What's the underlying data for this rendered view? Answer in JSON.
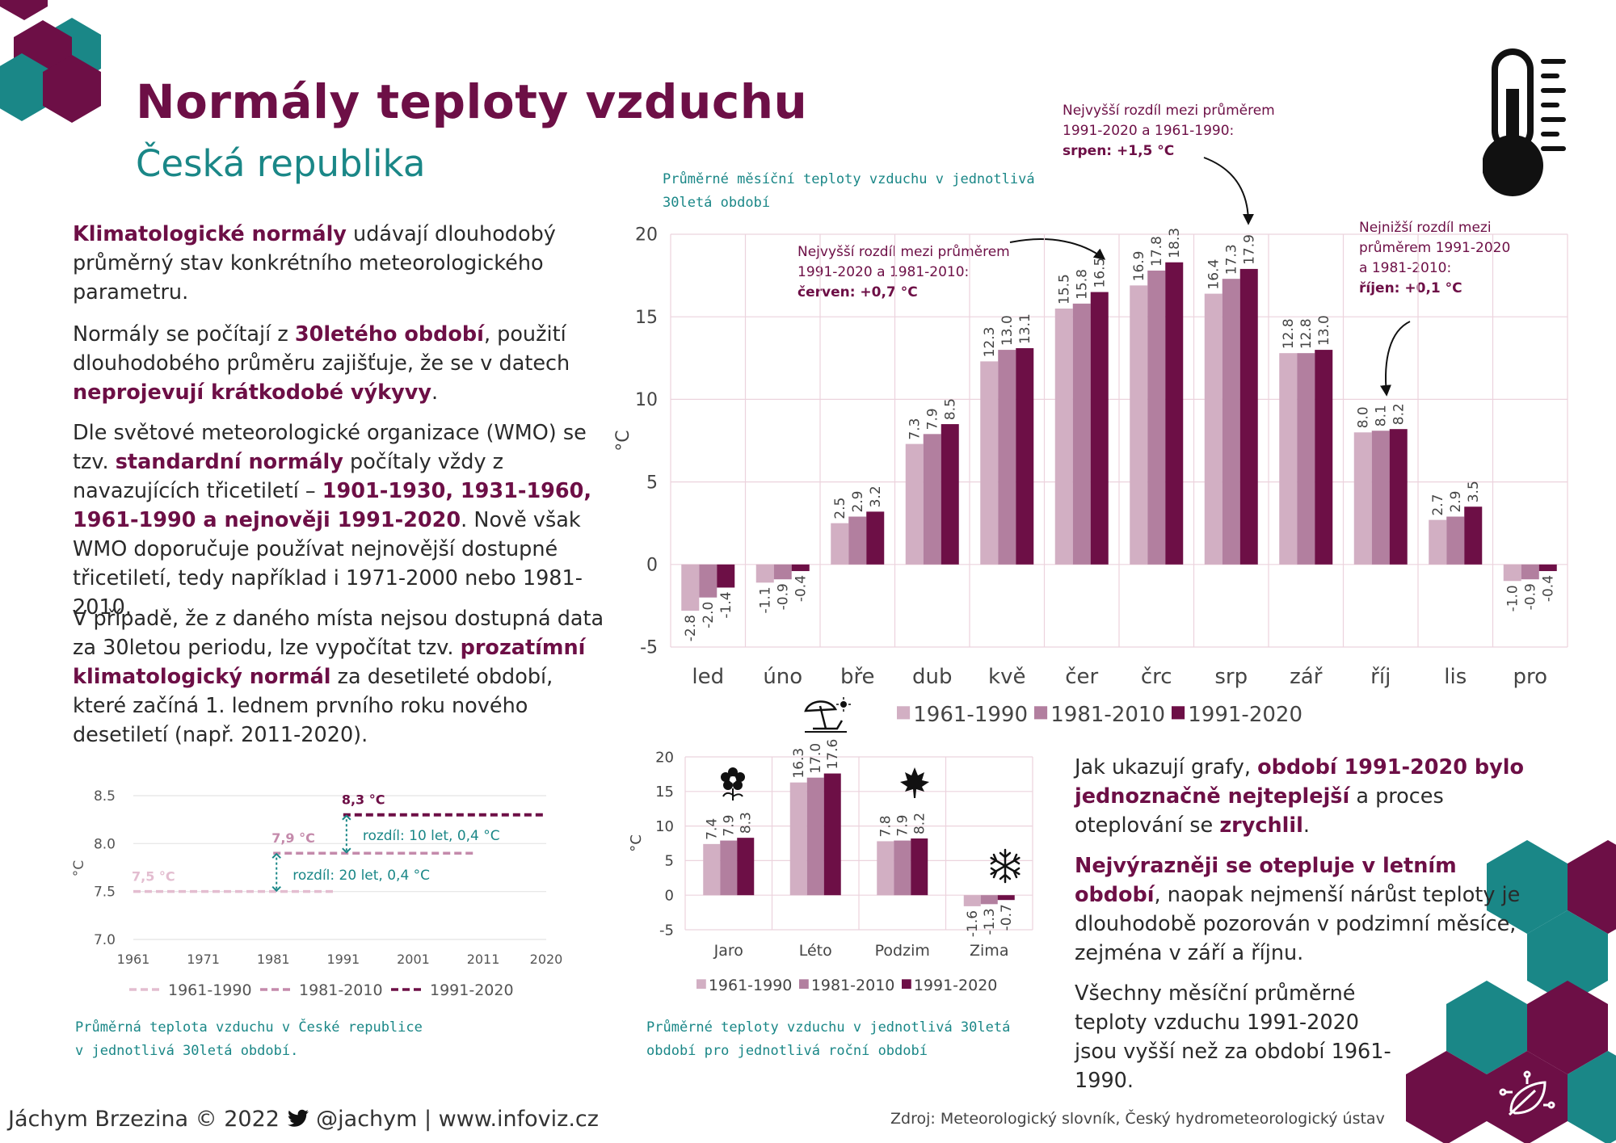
{
  "header": {
    "title": "Normály teploty vzduchu",
    "subtitle": "Česká republika"
  },
  "intro": {
    "p1": {
      "b1": "Klimatologické normály",
      "t1": " udávají dlouhodobý průměrný stav konkrétního meteorologického parametru."
    },
    "p2": {
      "t1": "Normály se počítají z ",
      "b1": "30letého období",
      "t2": ", použití dlouhodobého průměru zajišťuje, že se v datech ",
      "b2": "neprojevují krátkodobé výkyvy",
      "t3": "."
    },
    "p3": {
      "t1": "Dle světové meteorologické organizace (WMO) se tzv. ",
      "b1": "standardní normály",
      "t2": " počítaly vždy z navazujících třicetiletí – ",
      "b2": "1901-1930, 1931-1960, 1961-1990 a nejnověji 1991-2020",
      "t3": ". Nově však WMO doporučuje používat nejnovější dostupné třicetiletí, tedy například i 1971-2000 nebo 1981-2010."
    },
    "p4": {
      "t1": "V případě, že z daného místa nejsou dostupná data za 30letou periodu, lze vypočítat tzv. ",
      "b1": "prozatímní klimatologický normál",
      "t2": " za desetileté období, které začíná 1. lednem prvního roku nového desetiletí (např. 2011-2020)."
    }
  },
  "conclusion": {
    "p1": {
      "t1": "Jak ukazují grafy, ",
      "b1": "období 1991-2020 bylo jednoznačně nejteplejší",
      "t2": " a proces oteplování se ",
      "b2": "zrychlil",
      "t3": "."
    },
    "p2": {
      "b1": "Nejvýrazněji se otepluje v letním období",
      "t1": ", naopak nejmenší nárůst teploty je dlouhodobě pozorován v podzimní měsíce, zejména v září a říjnu."
    },
    "p3": {
      "t1": "Všechny měsíční průměrné teploty vzduchu 1991-2020 jsou vyšší než za období 1961-1990."
    }
  },
  "captions": {
    "monthly": [
      "Průměrné měsíční teploty vzduchu v jednotlivá",
      "30letá období"
    ],
    "line": [
      "Průměrná teplota vzduchu v České republice",
      "v jednotlivá 30letá období."
    ],
    "seasonal": [
      "Průměrné teploty vzduchu v jednotlivá 30letá",
      "období pro jednotlivá roční období"
    ]
  },
  "notes": {
    "aug": {
      "l1": "Nejvyšší rozdíl mezi průměrem",
      "l2": "1991-2020 a 1961-1990:",
      "b": "srpen: +1,5 °C"
    },
    "jun": {
      "l1": "Nejvyšší rozdíl mezi průměrem",
      "l2": "1991-2020 a 1981-2010:",
      "b": "červen: +0,7 °C"
    },
    "oct": {
      "l1": "Nejnižší rozdíl mezi",
      "l2": "průměrem 1991-2020",
      "l3": "a 1981-2010:",
      "b": "říjen: +0,1 °C"
    }
  },
  "footer": {
    "left_a": "Jáchym Brzezina © 2022",
    "left_b": "@jachym | www.infoviz.cz",
    "source": "Zdroj: Meteorologický slovník, Český hydrometeorologický ústav"
  },
  "colors": {
    "s1961": "#d2afc3",
    "s1981": "#b27f9f",
    "s1991": "#6d0f46",
    "teal": "#1a8787",
    "plum": "#6d0f46",
    "grid": "#ecd3dd"
  },
  "icons": [
    "thermometer-icon",
    "twitter-icon",
    "beach-umbrella-icon",
    "flower-icon",
    "maple-leaf-icon",
    "snowflake-icon",
    "leaf-circuit-icon"
  ],
  "chart_data": [
    {
      "type": "bar",
      "ylabel": "°C",
      "ylim": [
        -5,
        20
      ],
      "yticks": [
        20,
        15,
        10,
        5,
        0,
        -5
      ],
      "categories": [
        "led",
        "úno",
        "bře",
        "dub",
        "kvě",
        "čer",
        "črc",
        "srp",
        "zář",
        "říj",
        "lis",
        "pro"
      ],
      "series": [
        {
          "name": "1961-1990",
          "values": [
            -2.8,
            -1.1,
            2.5,
            7.3,
            12.3,
            15.5,
            16.9,
            16.4,
            12.8,
            8.0,
            2.7,
            -1.0
          ]
        },
        {
          "name": "1981-2010",
          "values": [
            -2.0,
            -0.9,
            2.9,
            7.9,
            13.0,
            15.8,
            17.8,
            17.3,
            12.8,
            8.1,
            2.9,
            -0.9
          ]
        },
        {
          "name": "1991-2020",
          "values": [
            -1.4,
            -0.4,
            3.2,
            8.5,
            13.1,
            16.5,
            18.3,
            17.9,
            13.0,
            8.2,
            3.5,
            -0.4
          ]
        }
      ],
      "data_labels": [
        [
          "-2.8",
          "-1.1",
          "2.5",
          "7.3",
          "12.3",
          "15.5",
          "16.9",
          "16.4",
          "12.8",
          "8.0",
          "2.7",
          "-1.0"
        ],
        [
          "-2.0",
          "-0.9",
          "2.9",
          "7.9",
          "13.0",
          "15.8",
          "17.8",
          "17.3",
          "12.8",
          "8.1",
          "2.9",
          "-0.9"
        ],
        [
          "-1.4",
          "-0.4",
          "3.2",
          "8.5",
          "13.1",
          "16.5",
          "18.3",
          "17.9",
          "13.0",
          "8.2",
          "3.5",
          "-0.4"
        ]
      ],
      "legend": "bottom"
    },
    {
      "type": "bar",
      "ylabel": "°C",
      "ylim": [
        -5,
        20
      ],
      "yticks": [
        20,
        15,
        10,
        5,
        0,
        -5
      ],
      "categories": [
        "Jaro",
        "Léto",
        "Podzim",
        "Zima"
      ],
      "series": [
        {
          "name": "1961-1990",
          "values": [
            7.4,
            16.3,
            7.8,
            -1.6
          ]
        },
        {
          "name": "1981-2010",
          "values": [
            7.9,
            17.0,
            7.9,
            -1.3
          ]
        },
        {
          "name": "1991-2020",
          "values": [
            8.3,
            17.6,
            8.2,
            -0.7
          ]
        }
      ],
      "data_labels": [
        [
          "7.4",
          "16.3",
          "7.8",
          "-1.6"
        ],
        [
          "7.9",
          "17.0",
          "7.9",
          "-1.3"
        ],
        [
          "8.3",
          "17.6",
          "8.2",
          "-0.7"
        ]
      ],
      "legend": "bottom"
    },
    {
      "type": "line",
      "ylabel": "°C",
      "ylim": [
        7.0,
        8.5
      ],
      "yticks": [
        "8.5",
        "8.0",
        "7.5",
        "7.0"
      ],
      "xticks": [
        "1961",
        "1971",
        "1981",
        "1991",
        "2001",
        "2011",
        "2020"
      ],
      "xlim": [
        1961,
        2020
      ],
      "series": [
        {
          "name": "1961-1990",
          "x": [
            1961,
            1990
          ],
          "y": [
            7.5,
            7.5
          ],
          "label": "7,5 °C"
        },
        {
          "name": "1981-2010",
          "x": [
            1981,
            2010
          ],
          "y": [
            7.9,
            7.9
          ],
          "label": "7,9 °C"
        },
        {
          "name": "1991-2020",
          "x": [
            1991,
            2020
          ],
          "y": [
            8.3,
            8.3
          ],
          "label": "8,3 °C"
        }
      ],
      "annotations": [
        "rozdíl: 10 let, 0,4 °C",
        "rozdíl: 20 let, 0,4 °C"
      ],
      "legend": "bottom"
    }
  ]
}
